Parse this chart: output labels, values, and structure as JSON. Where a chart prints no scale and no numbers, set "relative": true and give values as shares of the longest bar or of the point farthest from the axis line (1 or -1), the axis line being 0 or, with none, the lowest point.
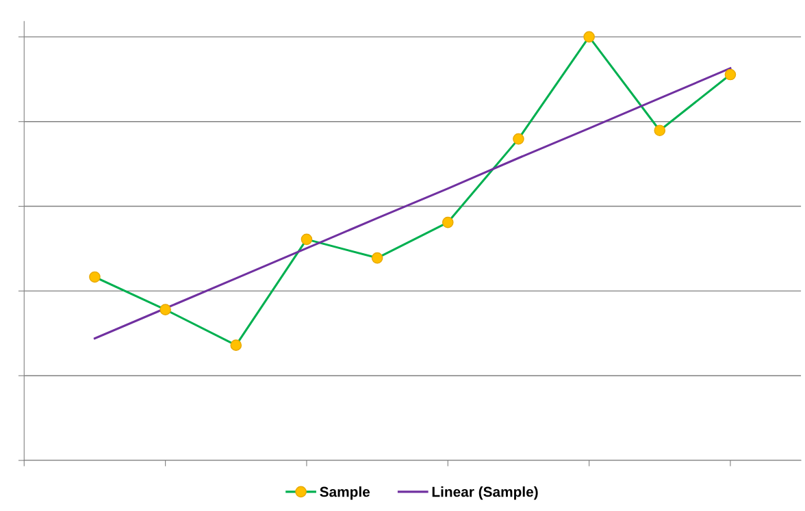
{
  "chart_data": {
    "type": "line",
    "relative": true,
    "categories": [
      null,
      null,
      null,
      null,
      null,
      null,
      null,
      null,
      null,
      null
    ],
    "series": [
      {
        "name": "Sample",
        "color": "#00b050",
        "marker": "circle",
        "colors": [
          "#ffc000",
          "#ffc000",
          "#ffc000",
          "#ffc000",
          "#ffc000",
          "#ffc000",
          "#ffc000",
          "#ffc000",
          "#ffc000",
          "#ffc000"
        ],
        "values": [
          0.433,
          0.356,
          0.272,
          0.522,
          0.478,
          0.562,
          0.759,
          1,
          0.779,
          0.911
        ]
      },
      {
        "name": "Linear (Sample)",
        "color": "#7030a0",
        "marker": "none",
        "values": [
          0.288,
          0.359,
          0.43,
          0.501,
          0.572,
          0.642,
          0.714,
          0.784,
          0.855,
          0.926
        ]
      }
    ],
    "grid": "y",
    "legend": "bottom",
    "line_style": "solid"
  }
}
